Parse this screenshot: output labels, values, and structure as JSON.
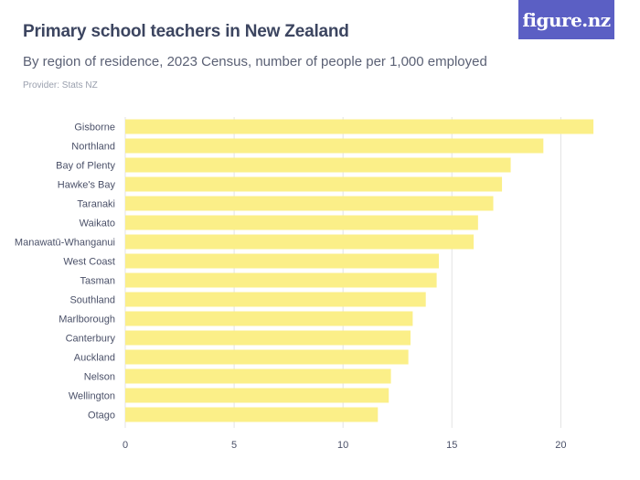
{
  "header": {
    "title": "Primary school teachers in New Zealand",
    "subtitle": "By region of residence, 2023 Census, number of people per 1,000 employed",
    "provider": "Provider: Stats NZ",
    "logo_text": "figure.nz"
  },
  "colors": {
    "bar": "#fbef88",
    "grid": "#e3e3e3",
    "axis_text": "#4a5068",
    "logo_bg": "#5b5fc4"
  },
  "chart_data": {
    "type": "bar",
    "orientation": "horizontal",
    "title": "Primary school teachers in New Zealand",
    "subtitle": "By region of residence, 2023 Census, number of people per 1,000 employed",
    "xlabel": "",
    "ylabel": "",
    "xlim": [
      0,
      22
    ],
    "ticks": [
      0,
      5,
      10,
      15,
      20
    ],
    "grid": true,
    "categories": [
      "Gisborne",
      "Northland",
      "Bay of Plenty",
      "Hawke's Bay",
      "Taranaki",
      "Waikato",
      "Manawatū-Whanganui",
      "West Coast",
      "Tasman",
      "Southland",
      "Marlborough",
      "Canterbury",
      "Auckland",
      "Nelson",
      "Wellington",
      "Otago"
    ],
    "values": [
      21.5,
      19.2,
      17.7,
      17.3,
      16.9,
      16.2,
      16.0,
      14.4,
      14.3,
      13.8,
      13.2,
      13.1,
      13.0,
      12.2,
      12.1,
      11.6
    ]
  }
}
